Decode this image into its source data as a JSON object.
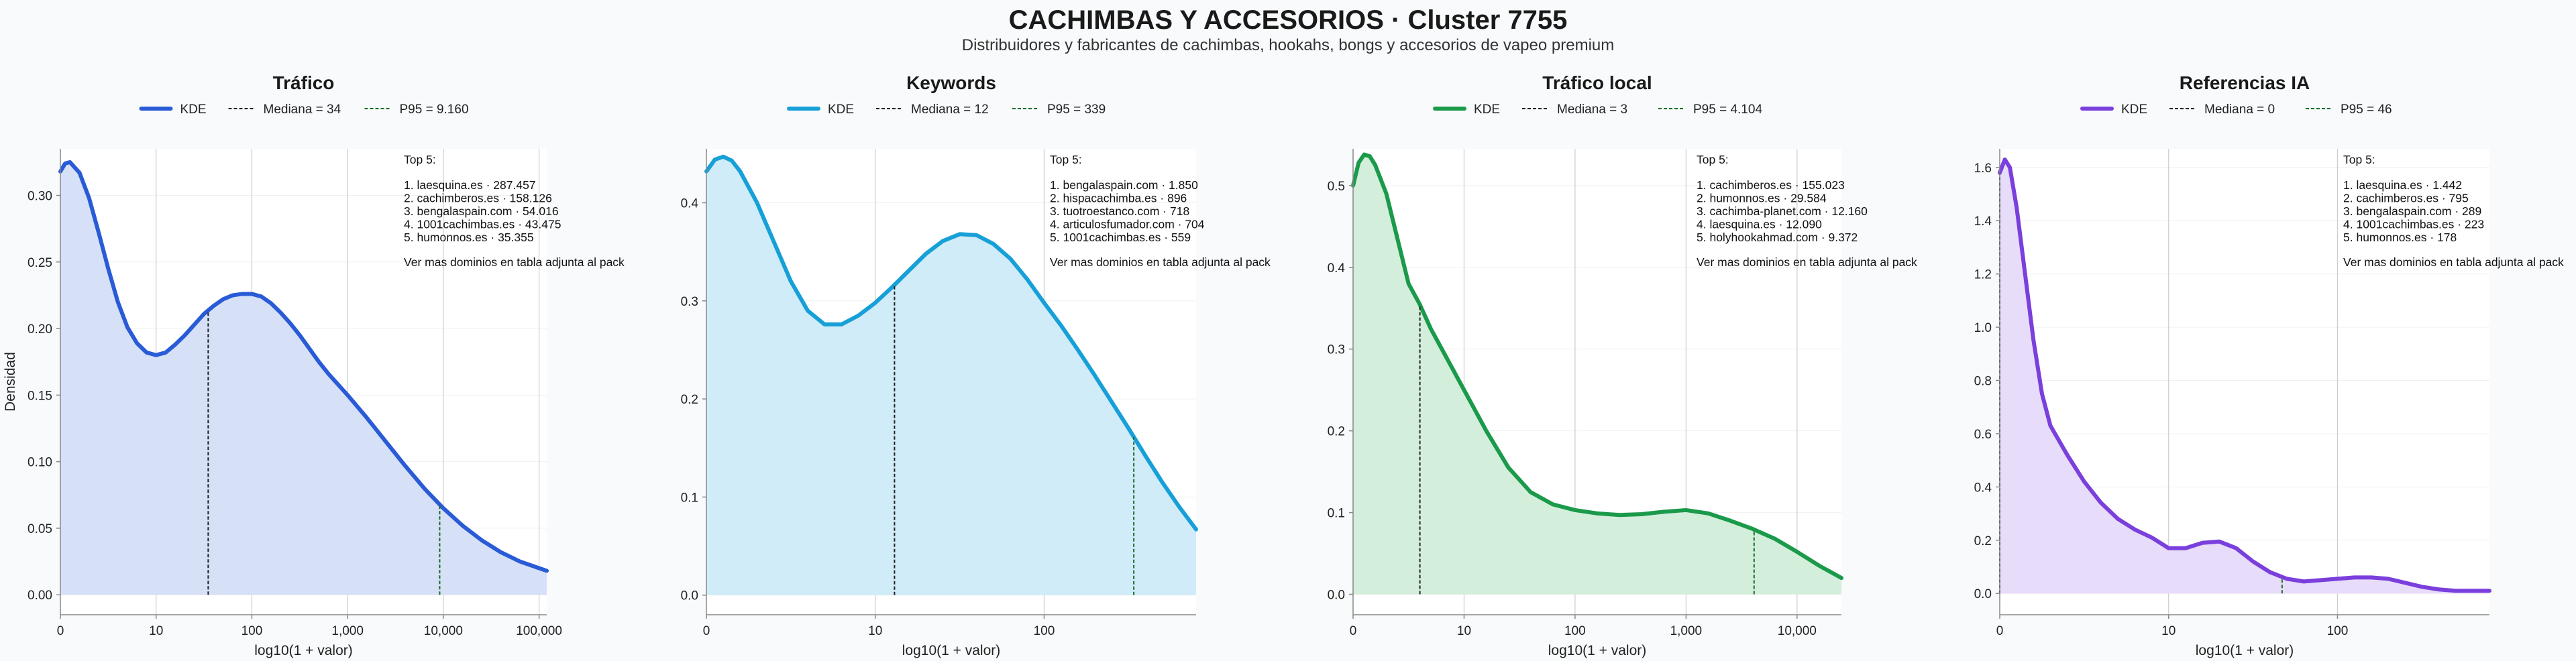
{
  "title": "CACHIMBAS Y ACCESORIOS · Cluster 7755",
  "subtitle": "Distribuidores y fabricantes de cachimbas, hookahs, bongs y accesorios de vapeo premium",
  "chart_data": [
    {
      "type": "area",
      "title": "Tráfico",
      "xlabel": "log10(1 + valor)",
      "ylabel": "Densidad",
      "x_scale": "log10(1+x)",
      "xlim": [
        0,
        5.08
      ],
      "ylim": [
        -0.015,
        0.335
      ],
      "yticks": [
        0.0,
        0.05,
        0.1,
        0.15,
        0.2,
        0.25,
        0.3
      ],
      "ytick_labels": [
        "0.00",
        "0.05",
        "0.10",
        "0.15",
        "0.20",
        "0.25",
        "0.30"
      ],
      "xticks": [
        0,
        1,
        2,
        3,
        4,
        5
      ],
      "xtick_labels": [
        "0",
        "10",
        "100",
        "1,000",
        "10,000",
        "100,000"
      ],
      "color": "#2a5bd7",
      "fill": "#d6e0f7",
      "legend": [
        "KDE",
        "Mediana = 34",
        "P95 = 9.160"
      ],
      "median_x": 1.544,
      "p95_x": 3.962,
      "kde": {
        "x": [
          0,
          0.05,
          0.1,
          0.2,
          0.3,
          0.4,
          0.5,
          0.6,
          0.7,
          0.8,
          0.9,
          1.0,
          1.1,
          1.2,
          1.3,
          1.4,
          1.5,
          1.6,
          1.7,
          1.8,
          1.9,
          2.0,
          2.1,
          2.2,
          2.3,
          2.4,
          2.5,
          2.6,
          2.7,
          2.8,
          2.9,
          3.0,
          3.2,
          3.4,
          3.6,
          3.8,
          4.0,
          4.2,
          4.4,
          4.6,
          4.8,
          5.0,
          5.08
        ],
        "y": [
          0.318,
          0.324,
          0.325,
          0.317,
          0.298,
          0.272,
          0.245,
          0.22,
          0.201,
          0.189,
          0.182,
          0.18,
          0.182,
          0.188,
          0.195,
          0.203,
          0.211,
          0.217,
          0.222,
          0.225,
          0.226,
          0.226,
          0.224,
          0.219,
          0.212,
          0.204,
          0.195,
          0.185,
          0.175,
          0.166,
          0.158,
          0.15,
          0.133,
          0.115,
          0.097,
          0.08,
          0.065,
          0.052,
          0.041,
          0.032,
          0.025,
          0.02,
          0.018
        ]
      },
      "top5_title": "Top 5:",
      "top5": [
        "1. laesquina.es · 287.457",
        "2. cachimberos.es · 158.126",
        "3. bengalaspain.com · 54.016",
        "4. 1001cachimbas.es · 43.475",
        "5. humonnos.es · 35.355"
      ],
      "footnote": "Ver mas dominios en tabla adjunta al pack"
    },
    {
      "type": "area",
      "title": "Keywords",
      "xlabel": "log10(1 + valor)",
      "ylabel": "",
      "x_scale": "log10(1+x)",
      "xlim": [
        0,
        2.9
      ],
      "ylim": [
        -0.02,
        0.455
      ],
      "yticks": [
        0.0,
        0.1,
        0.2,
        0.3,
        0.4
      ],
      "ytick_labels": [
        "0.0",
        "0.1",
        "0.2",
        "0.3",
        "0.4"
      ],
      "xticks": [
        0,
        1,
        2
      ],
      "xtick_labels": [
        "0",
        "10",
        "100"
      ],
      "color": "#17a0d8",
      "fill": "#d0ecf8",
      "legend": [
        "KDE",
        "Mediana = 12",
        "P95 = 339"
      ],
      "median_x": 1.114,
      "p95_x": 2.531,
      "kde": {
        "x": [
          0,
          0.05,
          0.1,
          0.15,
          0.2,
          0.3,
          0.4,
          0.5,
          0.6,
          0.7,
          0.8,
          0.9,
          1.0,
          1.1,
          1.2,
          1.3,
          1.4,
          1.5,
          1.6,
          1.7,
          1.8,
          1.9,
          2.0,
          2.1,
          2.2,
          2.3,
          2.4,
          2.5,
          2.6,
          2.7,
          2.8,
          2.9
        ],
        "y": [
          0.432,
          0.444,
          0.447,
          0.443,
          0.432,
          0.4,
          0.36,
          0.32,
          0.29,
          0.276,
          0.276,
          0.285,
          0.298,
          0.314,
          0.331,
          0.348,
          0.361,
          0.368,
          0.367,
          0.358,
          0.343,
          0.322,
          0.298,
          0.275,
          0.25,
          0.224,
          0.197,
          0.17,
          0.142,
          0.115,
          0.09,
          0.067
        ]
      },
      "top5_title": "Top 5:",
      "top5": [
        "1. bengalaspain.com · 1.850",
        "2. hispacachimba.es · 896",
        "3. tuotroestanco.com · 718",
        "4. articulosfumador.com · 704",
        "5. 1001cachimbas.es · 559"
      ],
      "footnote": "Ver mas dominios en tabla adjunta al pack"
    },
    {
      "type": "area",
      "title": "Tráfico local",
      "xlabel": "log10(1 + valor)",
      "ylabel": "",
      "x_scale": "log10(1+x)",
      "xlim": [
        0,
        4.4
      ],
      "ylim": [
        -0.025,
        0.545
      ],
      "yticks": [
        0.0,
        0.1,
        0.2,
        0.3,
        0.4,
        0.5
      ],
      "ytick_labels": [
        "0.0",
        "0.1",
        "0.2",
        "0.3",
        "0.4",
        "0.5"
      ],
      "xticks": [
        0,
        1,
        2,
        3,
        4
      ],
      "xtick_labels": [
        "0",
        "10",
        "100",
        "1,000",
        "10,000"
      ],
      "color": "#1a9a4a",
      "fill": "#d3eedb",
      "legend": [
        "KDE",
        "Mediana = 3",
        "P95 = 4.104"
      ],
      "median_x": 0.602,
      "p95_x": 3.613,
      "kde": {
        "x": [
          0,
          0.05,
          0.1,
          0.15,
          0.2,
          0.3,
          0.4,
          0.5,
          0.6,
          0.7,
          0.8,
          0.9,
          1.0,
          1.2,
          1.4,
          1.6,
          1.8,
          2.0,
          2.2,
          2.4,
          2.6,
          2.8,
          3.0,
          3.2,
          3.4,
          3.6,
          3.8,
          4.0,
          4.2,
          4.4
        ],
        "y": [
          0.5,
          0.528,
          0.538,
          0.536,
          0.525,
          0.49,
          0.435,
          0.38,
          0.355,
          0.325,
          0.3,
          0.275,
          0.25,
          0.2,
          0.155,
          0.125,
          0.11,
          0.103,
          0.099,
          0.097,
          0.098,
          0.101,
          0.103,
          0.099,
          0.09,
          0.08,
          0.068,
          0.052,
          0.035,
          0.02
        ]
      },
      "top5_title": "Top 5:",
      "top5": [
        "1. cachimberos.es · 155.023",
        "2. humonnos.es · 29.584",
        "3. cachimba-planet.com · 12.160",
        "4. laesquina.es · 12.090",
        "5. holyhookahmad.com · 9.372"
      ],
      "footnote": "Ver mas dominios en tabla adjunta al pack"
    },
    {
      "type": "area",
      "title": "Referencias IA",
      "xlabel": "log10(1 + valor)",
      "ylabel": "",
      "x_scale": "log10(1+x)",
      "xlim": [
        0,
        2.9
      ],
      "ylim": [
        -0.08,
        1.67
      ],
      "yticks": [
        0.0,
        0.2,
        0.4,
        0.6,
        0.8,
        1.0,
        1.2,
        1.4,
        1.6
      ],
      "ytick_labels": [
        "0.0",
        "0.2",
        "0.4",
        "0.6",
        "0.8",
        "1.0",
        "1.2",
        "1.4",
        "1.6"
      ],
      "xticks": [
        0,
        1,
        2
      ],
      "xtick_labels": [
        "0",
        "10",
        "100"
      ],
      "color": "#7a3fdc",
      "fill": "#e7dcf9",
      "legend": [
        "KDE",
        "Mediana = 0",
        "P95 = 46"
      ],
      "median_x": 0,
      "p95_x": 1.672,
      "kde": {
        "x": [
          0,
          0.03,
          0.06,
          0.1,
          0.15,
          0.2,
          0.25,
          0.3,
          0.4,
          0.5,
          0.6,
          0.7,
          0.8,
          0.9,
          1.0,
          1.1,
          1.2,
          1.3,
          1.4,
          1.5,
          1.6,
          1.7,
          1.8,
          1.9,
          2.0,
          2.1,
          2.2,
          2.3,
          2.4,
          2.5,
          2.6,
          2.7,
          2.8,
          2.9
        ],
        "y": [
          1.58,
          1.63,
          1.6,
          1.45,
          1.2,
          0.95,
          0.75,
          0.63,
          0.52,
          0.42,
          0.34,
          0.28,
          0.24,
          0.21,
          0.17,
          0.17,
          0.19,
          0.195,
          0.17,
          0.12,
          0.08,
          0.055,
          0.045,
          0.05,
          0.055,
          0.06,
          0.06,
          0.055,
          0.04,
          0.025,
          0.015,
          0.01,
          0.01,
          0.01
        ]
      },
      "top5_title": "Top 5:",
      "top5": [
        "1. laesquina.es · 1.442",
        "2. cachimberos.es · 795",
        "3. bengalaspain.com · 289",
        "4. 1001cachimbas.es · 223",
        "5. humonnos.es · 178"
      ],
      "footnote": "Ver mas dominios en tabla adjunta al pack"
    }
  ]
}
